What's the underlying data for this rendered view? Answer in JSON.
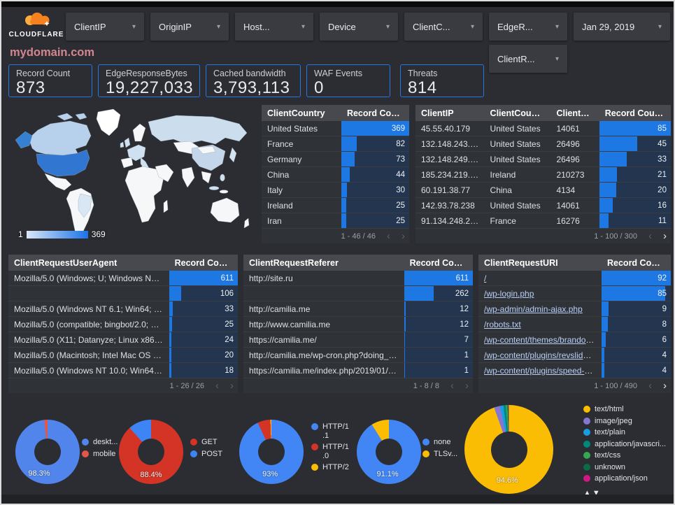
{
  "brand": {
    "name": "CLOUDFLARE"
  },
  "icons": {
    "caret_down": "▾",
    "chevron_left": "‹",
    "chevron_right": "›",
    "sort_asc": "▲",
    "sort_desc": "▼"
  },
  "filters": [
    {
      "label": "ClientIP"
    },
    {
      "label": "OriginIP"
    },
    {
      "label": "Host..."
    },
    {
      "label": "Device"
    },
    {
      "label": "ClientC..."
    },
    {
      "label": "EdgeR..."
    },
    {
      "label": "ClientR..."
    }
  ],
  "date_filter": {
    "label": "Jan 29, 2019"
  },
  "title": "mydomain.com",
  "scorecards": [
    {
      "label": "Record Count",
      "value": "873"
    },
    {
      "label": "EdgeResponseBytes",
      "value": "19,227,033"
    },
    {
      "label": "Cached bandwidth",
      "value": "3,793,113"
    },
    {
      "label": "WAF Events",
      "value": "0"
    },
    {
      "label": "Threats",
      "value": "814"
    }
  ],
  "map": {
    "legend_min": "1",
    "legend_max": "369",
    "colors": {
      "land": "#f6f7f8",
      "canada": "#b7d1ec",
      "alaska": "#3680d3",
      "us": "#3177d2",
      "russia": "#ccdded",
      "china": "#c3d6ea",
      "europe_hot": "#cfe0f0",
      "brazil": "#d9e7f5",
      "greenland": "#ffffff",
      "japan": "#d5e4f2",
      "island": "#cfe0f0"
    }
  },
  "tables": {
    "country": {
      "col1": "ClientCountry",
      "col2": "Record Count",
      "rows": [
        {
          "label": "United States",
          "value": 369
        },
        {
          "label": "France",
          "value": 82
        },
        {
          "label": "Germany",
          "value": 73
        },
        {
          "label": "China",
          "value": 44
        },
        {
          "label": "Italy",
          "value": 30
        },
        {
          "label": "Ireland",
          "value": 25
        },
        {
          "label": "Iran",
          "value": 25
        }
      ],
      "pagination": "1 - 46 / 46"
    },
    "ip": {
      "col1": "ClientIP",
      "col2": "ClientCountry",
      "col3": "ClientASN",
      "col4": "Record Count",
      "rows": [
        {
          "ip": "45.55.40.179",
          "country": "United States",
          "asn": "14061",
          "value": 85
        },
        {
          "ip": "132.148.243.238",
          "country": "United States",
          "asn": "26496",
          "value": 45
        },
        {
          "ip": "132.148.249.210",
          "country": "United States",
          "asn": "26496",
          "value": 33
        },
        {
          "ip": "185.234.219.70",
          "country": "Ireland",
          "asn": "210273",
          "value": 21
        },
        {
          "ip": "60.191.38.77",
          "country": "China",
          "asn": "4134",
          "value": 20
        },
        {
          "ip": "142.93.78.238",
          "country": "United States",
          "asn": "14061",
          "value": 16
        },
        {
          "ip": "91.134.248.235",
          "country": "France",
          "asn": "16276",
          "value": 11
        }
      ],
      "pagination": "1 - 100 / 300"
    },
    "useragent": {
      "col1": "ClientRequestUserAgent",
      "col2": "Record Count",
      "rows": [
        {
          "label": "Mozilla/5.0 (Windows; U; Windows NT 5.1; en-U...",
          "value": 611
        },
        {
          "label": "",
          "value": 106
        },
        {
          "label": "Mozilla/5.0 (Windows NT 6.1; Win64; x64; rv:64...",
          "value": 33
        },
        {
          "label": "Mozilla/5.0 (compatible; bingbot/2.0; +http://w...",
          "value": 25
        },
        {
          "label": "Mozilla/5.0 (X11; Datanyze; Linux x86_64) Appl...",
          "value": 24
        },
        {
          "label": "Mozilla/5.0 (Macintosh; Intel Mac OS X 10.11; r...",
          "value": 20
        },
        {
          "label": "Mozilla/5.0 (Windows NT 10.0; Win64; x64) App...",
          "value": 18
        }
      ],
      "pagination": "1 - 26 / 26"
    },
    "referer": {
      "col1": "ClientRequestReferer",
      "col2": "Record Count",
      "rows": [
        {
          "label": "http://site.ru",
          "value": 611
        },
        {
          "label": "",
          "value": 262
        },
        {
          "label": "http://camilia.me",
          "value": 12
        },
        {
          "label": "http://www.camilia.me",
          "value": 12
        },
        {
          "label": "https://camilia.me/",
          "value": 7
        },
        {
          "label": "http://camilia.me/wp-cron.php?doing_wp_cron...",
          "value": 1
        },
        {
          "label": "https://camilia.me/index.php/2019/01/26/stor...",
          "value": 1
        }
      ],
      "pagination": "1 - 8 / 8"
    },
    "uri": {
      "col1": "ClientRequestURI",
      "col2": "Record Count",
      "rows": [
        {
          "label": "/",
          "value": 92
        },
        {
          "label": "/wp-login.php",
          "value": 85
        },
        {
          "label": "/wp-admin/admin-ajax.php",
          "value": 9
        },
        {
          "label": "/robots.txt",
          "value": 8
        },
        {
          "label": "/wp-content/themes/brandon/plu...",
          "value": 6
        },
        {
          "label": "/wp-content/plugins/revslider/rs-p...",
          "value": 4
        },
        {
          "label": "/wp-content/plugins/speed-booste...",
          "value": 4
        }
      ],
      "pagination": "1 - 100 / 490"
    }
  },
  "donuts": [
    {
      "name": "device-type",
      "label_pct": "98.3%",
      "slices": [
        {
          "name": "deskt...",
          "color": "#5285ec",
          "pct": 98.3
        },
        {
          "name": "mobile",
          "color": "#e2574a",
          "pct": 1.7
        }
      ]
    },
    {
      "name": "request-method",
      "label_pct": "88.4%",
      "slices": [
        {
          "name": "GET",
          "color": "#d33426",
          "pct": 88.4
        },
        {
          "name": "POST",
          "color": "#3d85f4",
          "pct": 11.6
        }
      ]
    },
    {
      "name": "http-version",
      "label_pct": "93%",
      "slices": [
        {
          "name": "HTTP/1.1",
          "color": "#4285f4",
          "pct": 93
        },
        {
          "name": "HTTP/1.0",
          "color": "#d33426",
          "pct": 6.5
        },
        {
          "name": "HTTP/2",
          "color": "#fbbc04",
          "pct": 0.5
        }
      ]
    },
    {
      "name": "tls-version",
      "label_pct": "91.1%",
      "slices": [
        {
          "name": "none",
          "color": "#4285f4",
          "pct": 91.1
        },
        {
          "name": "TLSv...",
          "color": "#fbbc04",
          "pct": 8.9
        }
      ]
    },
    {
      "name": "content-type",
      "label_pct": "94.6%",
      "slices": [
        {
          "name": "text/html",
          "color": "#fbbc04",
          "pct": 94.6
        },
        {
          "name": "image/jpeg",
          "color": "#8577d1",
          "pct": 2.2
        },
        {
          "name": "text/plain",
          "color": "#189de0",
          "pct": 1.2
        },
        {
          "name": "application/javascri...",
          "color": "#00897b",
          "pct": 0.9
        },
        {
          "name": "text/css",
          "color": "#34a853",
          "pct": 0.6
        },
        {
          "name": "unknown",
          "color": "#0b6b44",
          "pct": 0.3
        },
        {
          "name": "application/json",
          "color": "#d01884",
          "pct": 0.2
        }
      ]
    }
  ]
}
